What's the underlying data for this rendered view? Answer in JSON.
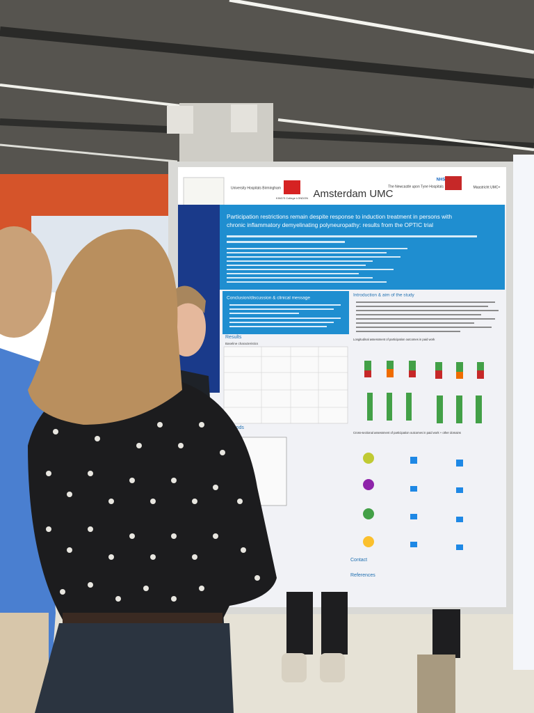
{
  "poster": {
    "logos": [
      "University Hospitals Birmingham",
      "KING'S College LONDON",
      "Amsterdam UMC",
      "The Newcastle upon Tyne Hospitals",
      "NHS",
      "Maastricht UMC+"
    ],
    "title_lines": [
      "Participation restrictions remain despite response to induction treatment in persons with",
      "chronic inflammatory demyelinating polyneuropathy: results from the OPTIC trial"
    ],
    "sections": {
      "conclusion": "Conclusion/discussion & clinical message",
      "introduction": "Introduction & aim of the study",
      "results": "Results",
      "baseline": "Baseline characteristics",
      "longitudinal": "Longitudinal assessment of participation outcomes in paid work",
      "cross_sectional": "Cross-sectional assessment of participation outcomes in paid work + other domains",
      "methods": "Methods",
      "contact": "Contact",
      "references": "References"
    }
  }
}
